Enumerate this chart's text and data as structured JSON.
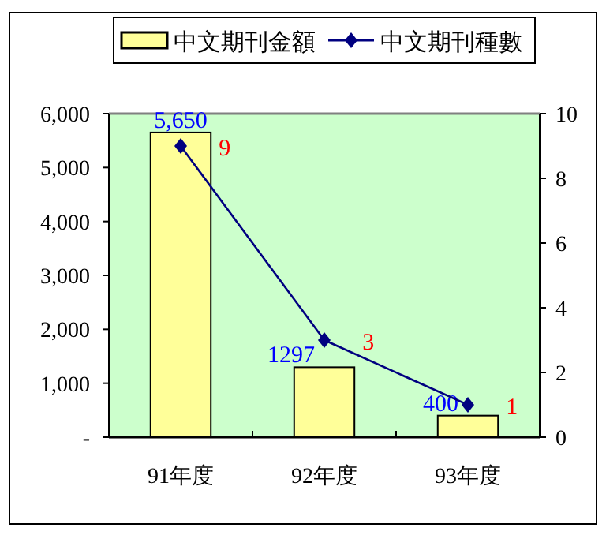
{
  "chart_data": {
    "type": "bar",
    "categories": [
      "91年度",
      "92年度",
      "93年度"
    ],
    "series": [
      {
        "name": "中文期刊金額",
        "color": "#ffff99",
        "values": [
          5650,
          1297,
          400
        ],
        "value_labels": [
          "5,650",
          "1297",
          "400"
        ]
      },
      {
        "name": "中文期刊種數",
        "type": "line",
        "axis": "y2",
        "color": "#000080",
        "marker": "diamond",
        "values": [
          9,
          3,
          1
        ],
        "value_labels": [
          "9",
          "3",
          "1"
        ]
      }
    ],
    "ylim": [
      0,
      6000
    ],
    "yticks": [
      {
        "value": 0,
        "label": "-"
      },
      {
        "value": 1000,
        "label": "1,000"
      },
      {
        "value": 2000,
        "label": "2,000"
      },
      {
        "value": 3000,
        "label": "3,000"
      },
      {
        "value": 4000,
        "label": "4,000"
      },
      {
        "value": 5000,
        "label": "5,000"
      },
      {
        "value": 6000,
        "label": "6,000"
      }
    ],
    "y2lim": [
      0,
      10
    ],
    "y2ticks": [
      0,
      2,
      4,
      6,
      8,
      10
    ],
    "legend": "top"
  }
}
